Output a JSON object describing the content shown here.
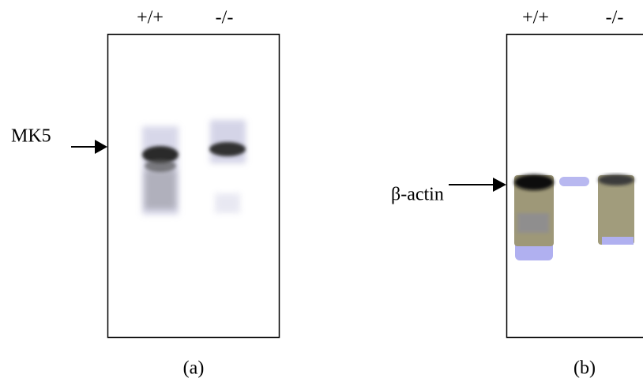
{
  "panels": [
    {
      "lane_labels": [
        "+/+",
        "-/-"
      ],
      "marker": "MK5",
      "caption": "(a)"
    },
    {
      "lane_labels": [
        "+/+",
        "-/-"
      ],
      "marker": "β-actin",
      "caption": "(b)"
    }
  ]
}
